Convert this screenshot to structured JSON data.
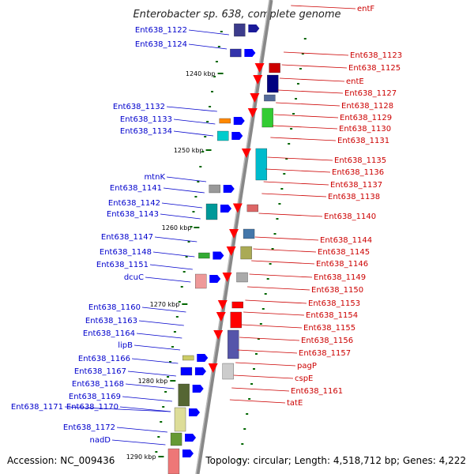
{
  "title": "Enterobacter sp. 638, complete genome",
  "footer": {
    "accession": "Accession: NC_009436",
    "topology": "Topology: circular; Length: 4,518,712 bp; Genes: 4,222"
  },
  "ruler": [
    "1240 kbp",
    "1250 kbp",
    "1260 kbp",
    "1270 kbp",
    "1280 kbp",
    "1290 kbp"
  ],
  "labels_left": [
    "Ent638_1122",
    "Ent638_1124",
    "Ent638_1132",
    "Ent638_1133",
    "Ent638_1134",
    "mtnK",
    "Ent638_1141",
    "Ent638_1142",
    "Ent638_1143",
    "Ent638_1147",
    "Ent638_1148",
    "Ent638_1151",
    "dcuC",
    "Ent638_1160",
    "Ent638_1163",
    "Ent638_1164",
    "lipB",
    "Ent638_1166",
    "Ent638_1167",
    "Ent638_1168",
    "Ent638_1169",
    "Ent638_1171",
    "Ent638_1170",
    "Ent638_1172",
    "nadD"
  ],
  "labels_right": [
    "entF",
    "Ent638_1123",
    "Ent638_1125",
    "entE",
    "Ent638_1127",
    "Ent638_1128",
    "Ent638_1129",
    "Ent638_1130",
    "Ent638_1131",
    "Ent638_1135",
    "Ent638_1136",
    "Ent638_1137",
    "Ent638_1138",
    "Ent638_1140",
    "Ent638_1144",
    "Ent638_1145",
    "Ent638_1146",
    "Ent638_1149",
    "Ent638_1150",
    "Ent638_1153",
    "Ent638_1154",
    "Ent638_1155",
    "Ent638_1156",
    "Ent638_1157",
    "pagP",
    "cspE",
    "Ent638_1161",
    "tatE"
  ],
  "colors": {
    "left_label": "#0000cc",
    "right_label": "#cc0000",
    "forward_gene": "#0000ff",
    "reverse_gene": "#ff0000",
    "backbone": "#888888",
    "tick": "#006600"
  }
}
